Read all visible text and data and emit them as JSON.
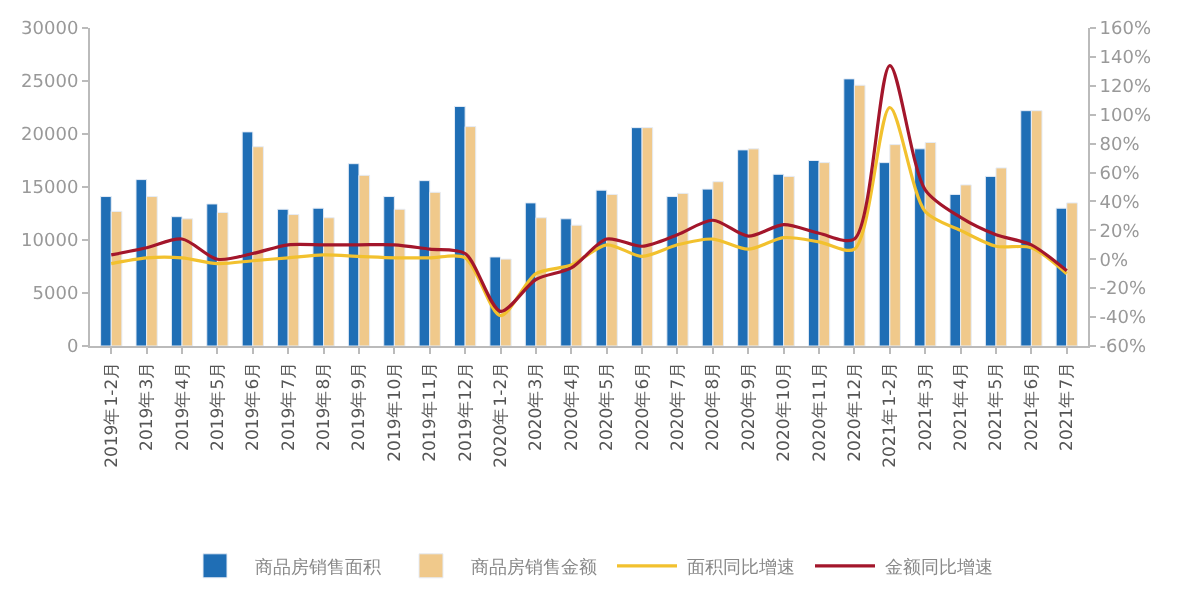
{
  "chart_data": {
    "type": "bar",
    "categories": [
      "2019年1-2月",
      "2019年3月",
      "2019年4月",
      "2019年5月",
      "2019年6月",
      "2019年7月",
      "2019年8月",
      "2019年9月",
      "2019年10月",
      "2019年11月",
      "2019年12月",
      "2020年1-2月",
      "2020年3月",
      "2020年4月",
      "2020年5月",
      "2020年6月",
      "2020年7月",
      "2020年8月",
      "2020年9月",
      "2020年10月",
      "2020年11月",
      "2020年12月",
      "2021年1-2月",
      "2021年3月",
      "2021年4月",
      "2021年5月",
      "2021年6月",
      "2021年7月"
    ],
    "series": [
      {
        "name": "商品房销售面积",
        "color": "#1f6eb5",
        "values": [
          14100,
          15700,
          12200,
          13400,
          20200,
          12900,
          13000,
          17200,
          14100,
          15600,
          22600,
          8400,
          13500,
          12000,
          14700,
          20600,
          14100,
          14800,
          18500,
          16200,
          17500,
          25200,
          17300,
          18600,
          14300,
          16000,
          22200,
          13000
        ]
      },
      {
        "name": "商品房销售金额",
        "color": "#f0c98b",
        "values": [
          12700,
          14100,
          12000,
          12600,
          18800,
          12400,
          12100,
          16100,
          12900,
          14500,
          20700,
          8200,
          12100,
          11400,
          14300,
          20600,
          14400,
          15500,
          18600,
          16000,
          17300,
          24600,
          19000,
          19200,
          15200,
          16800,
          22200,
          13500
        ]
      },
      {
        "name": "面积同比增速",
        "type": "line",
        "axis": "y2",
        "color": "#f2c12e",
        "values": [
          -3,
          1,
          1,
          -3,
          -1,
          1,
          3,
          2,
          1,
          1,
          1,
          -39,
          -10,
          -4,
          10,
          2,
          10,
          14,
          7,
          15,
          12,
          7,
          105,
          33,
          20,
          9,
          8,
          -10
        ]
      },
      {
        "name": "金额同比增速",
        "type": "line",
        "axis": "y2",
        "color": "#a3162b",
        "values": [
          3,
          8,
          14,
          0,
          4,
          10,
          10,
          10,
          10,
          7,
          4,
          -36,
          -14,
          -6,
          14,
          9,
          17,
          27,
          16,
          24,
          18,
          14,
          134,
          48,
          29,
          17,
          10,
          -8
        ]
      }
    ],
    "ylim": [
      0,
      30000
    ],
    "yticks": [
      0,
      5000,
      10000,
      15000,
      20000,
      25000,
      30000
    ],
    "y2lim": [
      -60,
      160
    ],
    "y2ticks": [
      {
        "value": -60,
        "label": "-60%"
      },
      {
        "value": -40,
        "label": "-40%"
      },
      {
        "value": -20,
        "label": "-20%"
      },
      {
        "value": 0,
        "label": "0%"
      },
      {
        "value": 20,
        "label": "20%"
      },
      {
        "value": 40,
        "label": "40%"
      },
      {
        "value": 60,
        "label": "60%"
      },
      {
        "value": 80,
        "label": "80%"
      },
      {
        "value": 100,
        "label": "100%"
      },
      {
        "value": 120,
        "label": "120%"
      },
      {
        "value": 140,
        "label": "140%"
      },
      {
        "value": 160,
        "label": "160%"
      }
    ],
    "legend": "bottom",
    "marker": "none",
    "line_style": "solid"
  }
}
